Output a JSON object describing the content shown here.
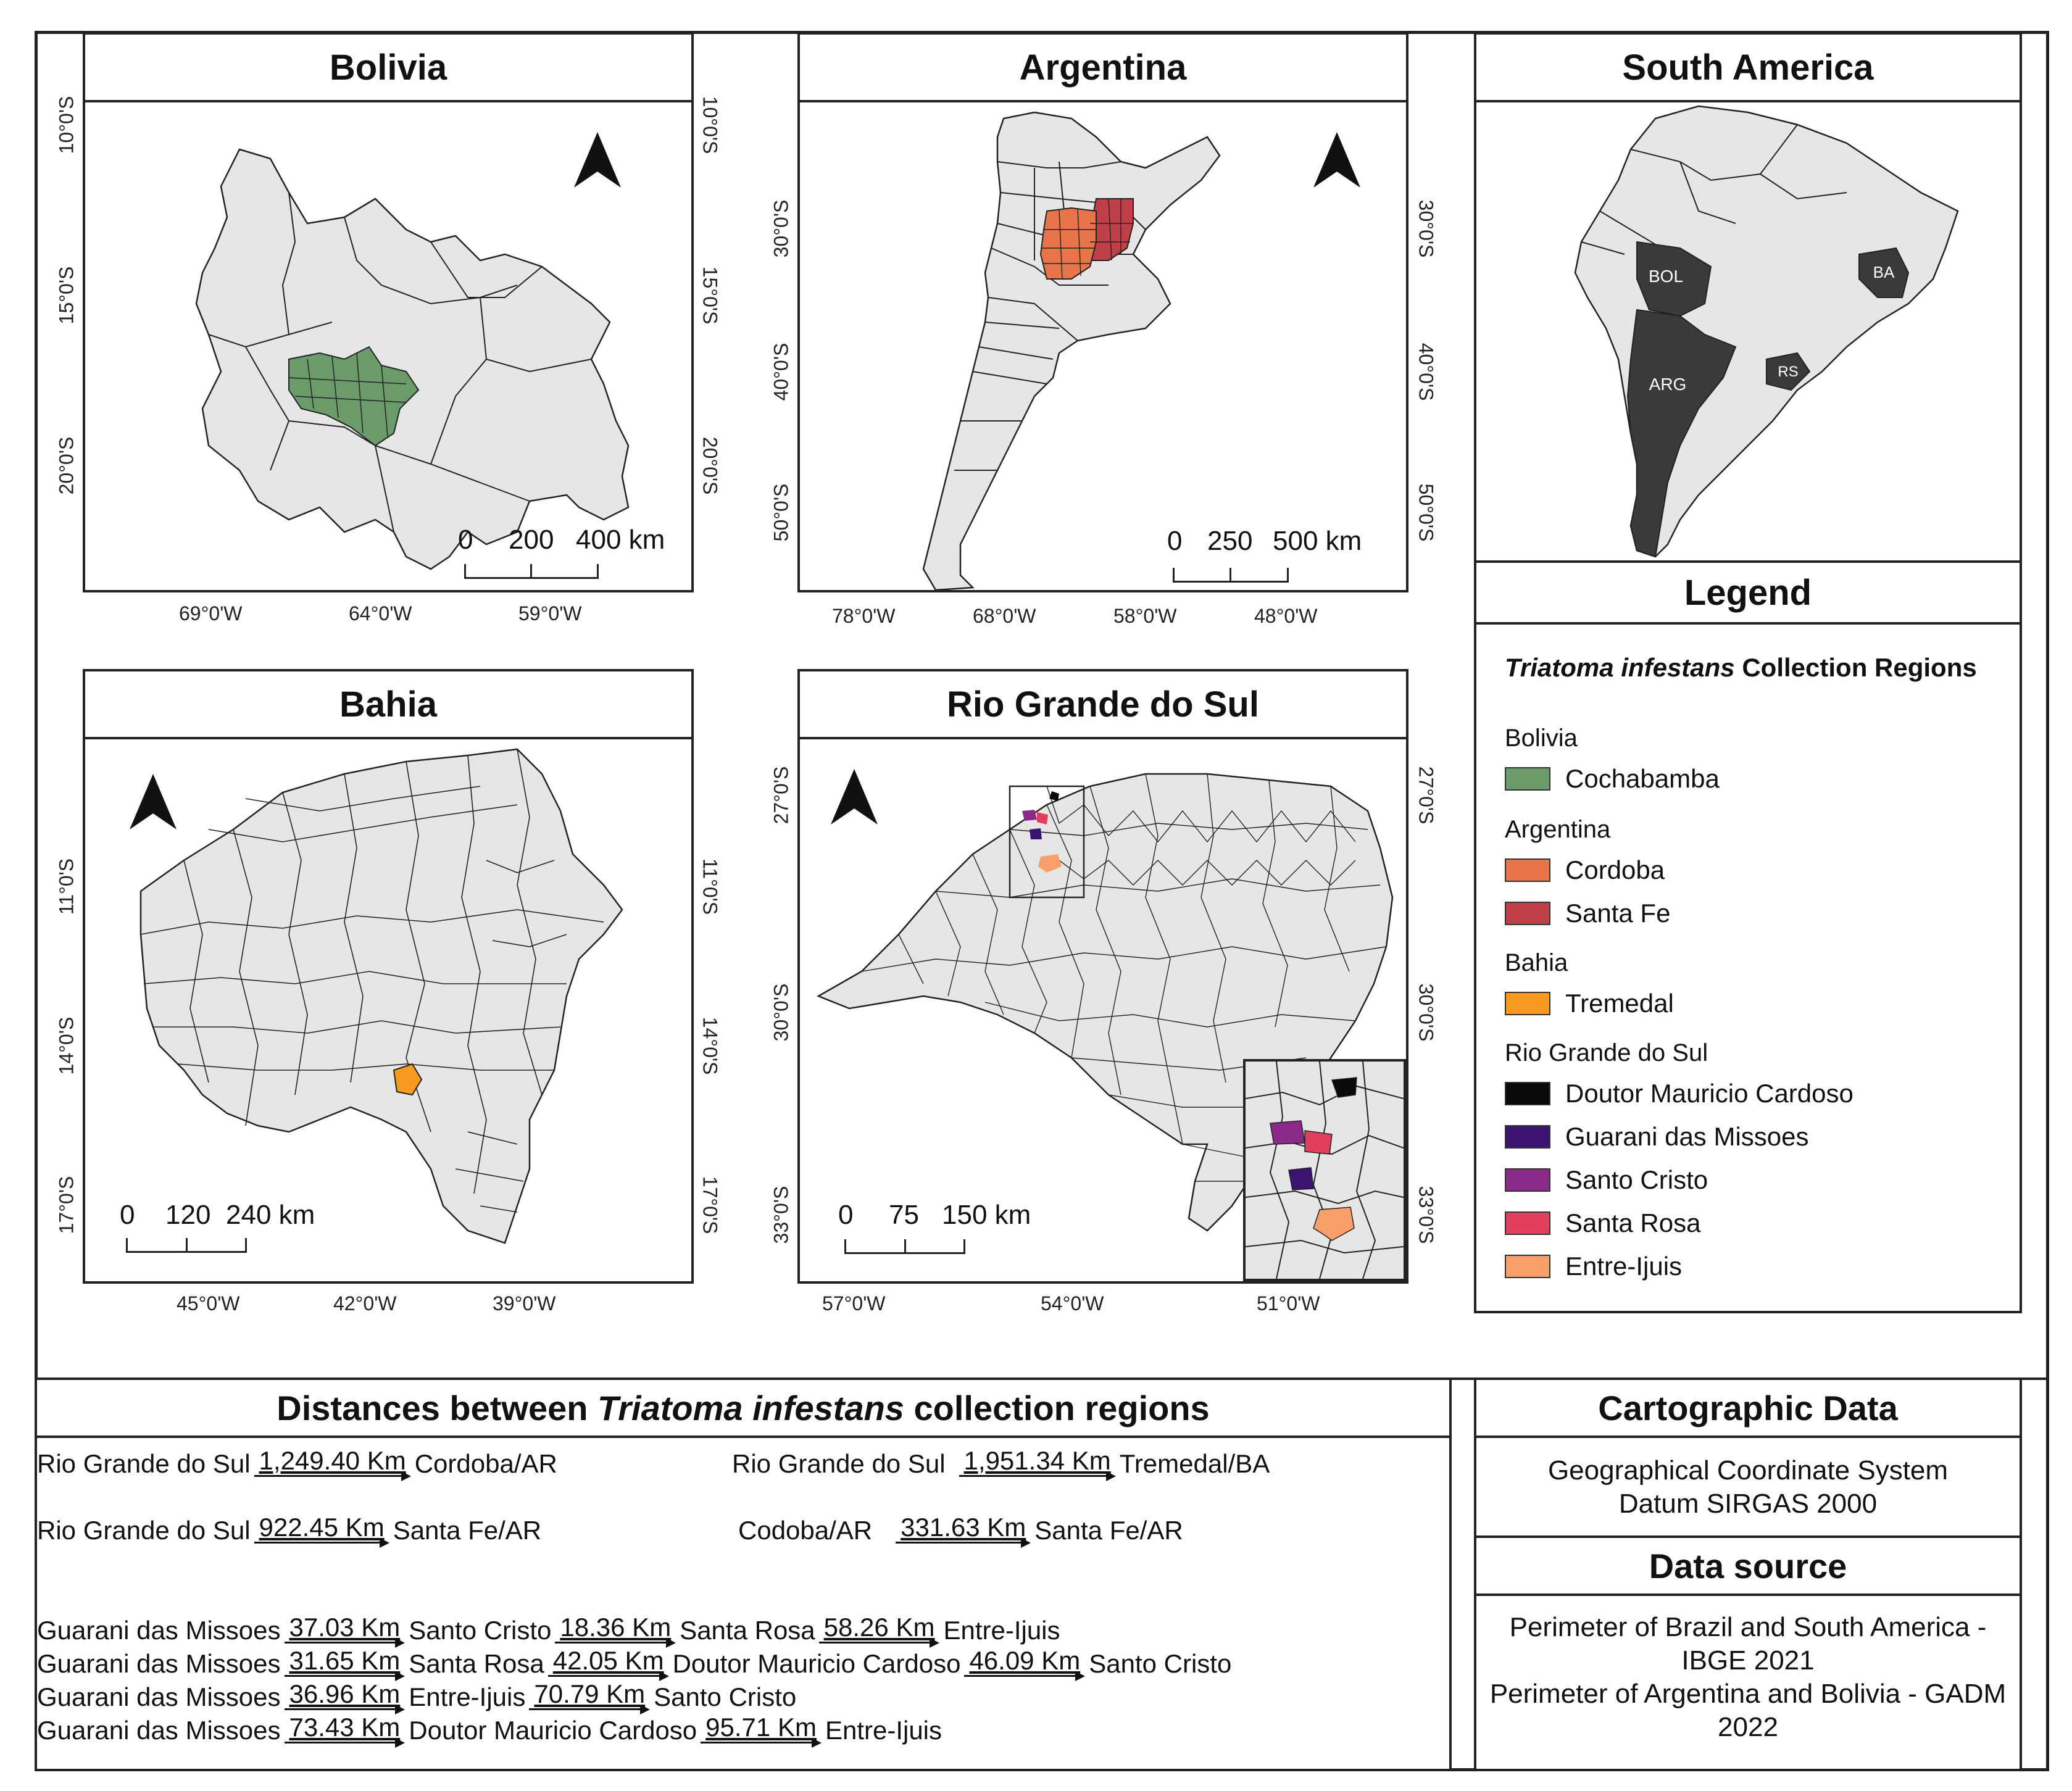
{
  "panels": {
    "bolivia": {
      "title": "Bolivia",
      "lat_labels": [
        "10°0'S",
        "15°0'S",
        "20°0'S"
      ],
      "lon_labels": [
        "69°0'W",
        "64°0'W",
        "59°0'W"
      ],
      "scale": [
        "0",
        "200",
        "400 km"
      ]
    },
    "argentina": {
      "title": "Argentina",
      "lat_labels": [
        "30°0'S",
        "40°0'S",
        "50°0'S"
      ],
      "lon_labels": [
        "78°0'W",
        "68°0'W",
        "58°0'W",
        "48°0'W"
      ],
      "scale": [
        "0",
        "250",
        "500 km"
      ]
    },
    "south_america": {
      "title": "South America",
      "region_labels": [
        "BOL",
        "BA",
        "RS",
        "ARG"
      ]
    },
    "bahia": {
      "title": "Bahia",
      "lat_labels": [
        "11°0'S",
        "14°0'S",
        "17°0'S"
      ],
      "lon_labels": [
        "45°0'W",
        "42°0'W",
        "39°0'W"
      ],
      "scale": [
        "0",
        "120",
        "240 km"
      ]
    },
    "rio_grande_do_sul": {
      "title": "Rio Grande do Sul",
      "lat_labels": [
        "27°0'S",
        "30°0'S",
        "33°0'S"
      ],
      "lon_labels": [
        "57°0'W",
        "54°0'W",
        "51°0'W"
      ],
      "scale": [
        "0",
        "75",
        "150 km"
      ]
    }
  },
  "legend": {
    "title": "Legend",
    "subtitle_italic": "Triatoma infestans",
    "subtitle_rest": "Collection Regions",
    "groups": [
      {
        "name": "Bolivia",
        "items": [
          {
            "label": "Cochabamba",
            "color": "#6b9a6b"
          }
        ]
      },
      {
        "name": "Argentina",
        "items": [
          {
            "label": "Cordoba",
            "color": "#e8744a"
          },
          {
            "label": "Santa Fe",
            "color": "#c0404a"
          }
        ]
      },
      {
        "name": "Bahia",
        "items": [
          {
            "label": "Tremedal",
            "color": "#f79a1f"
          }
        ]
      },
      {
        "name": "Rio Grande do Sul",
        "items": [
          {
            "label": "Doutor Mauricio Cardoso",
            "color": "#0a0a0a"
          },
          {
            "label": "Guarani das Missoes",
            "color": "#3a1470"
          },
          {
            "label": "Santo Cristo",
            "color": "#8c2a8a"
          },
          {
            "label": "Santa Rosa",
            "color": "#e0405e"
          },
          {
            "label": "Entre-Ijuis",
            "color": "#f9a06a"
          }
        ]
      }
    ]
  },
  "distances": {
    "title_pre": "Distances between",
    "title_italic": "Triatoma infestans",
    "title_post": "collection regions",
    "rows": [
      [
        "Rio Grande do Sul",
        "1,249.40 Km",
        "Cordoba/AR"
      ],
      [
        "Rio Grande do Sul",
        "1,951.34 Km",
        "Tremedal/BA"
      ],
      [
        "Rio Grande do Sul",
        "922.45 Km",
        "Santa Fe/AR"
      ],
      [
        "Codoba/AR",
        "331.63 Km",
        "Santa Fe/AR"
      ],
      [
        "Guarani das Missoes",
        "37.03 Km",
        "Santo Cristo",
        "18.36 Km",
        "Santa Rosa",
        "58.26 Km",
        "Entre-Ijuis"
      ],
      [
        "Guarani das Missoes",
        "31.65 Km",
        "Santa Rosa",
        "42.05 Km",
        "Doutor Mauricio Cardoso",
        "46.09 Km",
        "Santo Cristo"
      ],
      [
        "Guarani das Missoes",
        "36.96 Km",
        "Entre-Ijuis",
        "70.79 Km",
        "Santo Cristo"
      ],
      [
        "Guarani das Missoes",
        "73.43 Km",
        "Doutor Mauricio Cardoso",
        "95.71 Km",
        "Entre-Ijuis"
      ]
    ]
  },
  "cartographic": {
    "title": "Cartographic Data",
    "lines": [
      "Geographical Coordinate System",
      "Datum SIRGAS 2000"
    ]
  },
  "data_source": {
    "title": "Data source",
    "lines": [
      "Perimeter of Brazil and South America -",
      "IBGE 2021",
      "Perimeter of Argentina and Bolivia - GADM",
      "2022"
    ]
  },
  "colors": {
    "land": "#e6e6e6",
    "outline": "#222222",
    "sa_highlight": "#3a3a3a"
  }
}
